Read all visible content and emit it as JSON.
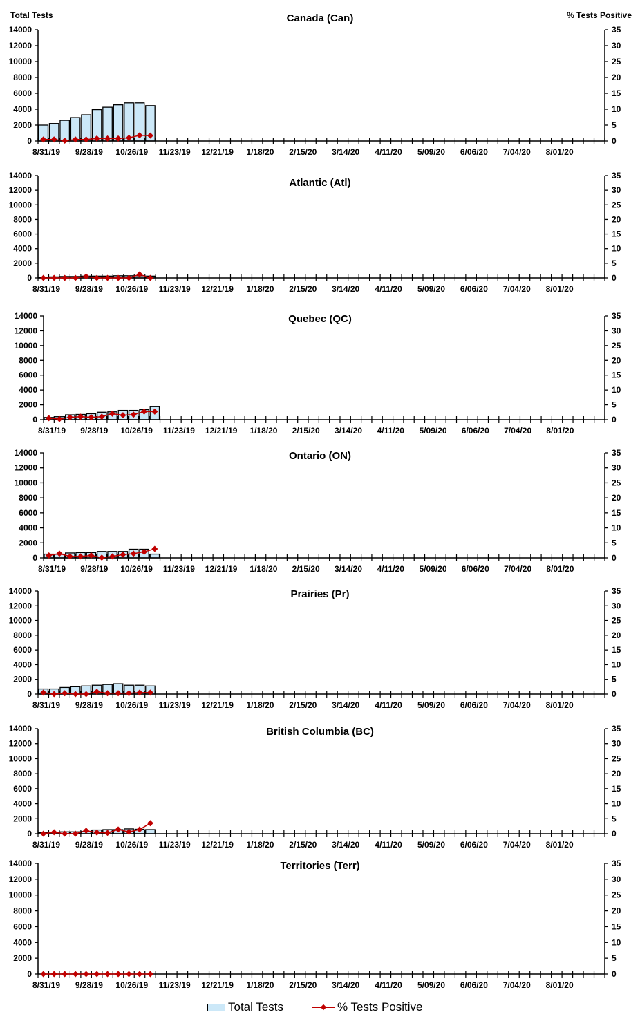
{
  "header": {
    "left_axis_title": "Total Tests",
    "right_axis_title": "% Tests Positive"
  },
  "legend": {
    "bar_label": "Total Tests",
    "line_label": "% Tests Positive"
  },
  "colors": {
    "bar_fill": "#cce8f8",
    "bar_stroke": "#000000",
    "line": "#c00000"
  },
  "chart_data": [
    {
      "type": "bar+line",
      "title": "Canada (Can)",
      "ylabel": "Total Tests",
      "y2label": "% Tests Positive",
      "ylim": [
        0,
        14000
      ],
      "y2lim": [
        0,
        35
      ],
      "yticks": [
        0,
        2000,
        4000,
        6000,
        8000,
        10000,
        12000,
        14000
      ],
      "y2ticks": [
        0,
        5,
        10,
        15,
        20,
        25,
        30,
        35
      ],
      "xtick_labels": [
        "8/31/19",
        "9/28/19",
        "10/26/19",
        "11/23/19",
        "12/21/19",
        "1/18/20",
        "2/15/20",
        "3/14/20",
        "4/11/20",
        "5/09/20",
        "6/06/20",
        "7/04/20",
        "8/01/20"
      ],
      "weeks_total": 53,
      "series": [
        {
          "name": "Total Tests",
          "type": "bar",
          "values": [
            2000,
            2200,
            2600,
            2950,
            3300,
            3950,
            4250,
            4550,
            4800,
            4800,
            4450
          ]
        },
        {
          "name": "% Tests Positive",
          "type": "line",
          "values": [
            0.5,
            0.5,
            0.1,
            0.5,
            0.5,
            0.8,
            0.8,
            0.8,
            1.0,
            1.8,
            1.7
          ]
        }
      ]
    },
    {
      "type": "bar+line",
      "title": "Atlantic (Atl)",
      "ylim": [
        0,
        14000
      ],
      "y2lim": [
        0,
        35
      ],
      "yticks": [
        0,
        2000,
        4000,
        6000,
        8000,
        10000,
        12000,
        14000
      ],
      "y2ticks": [
        0,
        5,
        10,
        15,
        20,
        25,
        30,
        35
      ],
      "xtick_labels": [
        "8/31/19",
        "9/28/19",
        "10/26/19",
        "11/23/19",
        "12/21/19",
        "1/18/20",
        "2/15/20",
        "3/14/20",
        "4/11/20",
        "5/09/20",
        "6/06/20",
        "7/04/20",
        "8/01/20"
      ],
      "weeks_total": 53,
      "series": [
        {
          "name": "Total Tests",
          "type": "bar",
          "values": [
            100,
            150,
            200,
            200,
            250,
            250,
            250,
            300,
            300,
            300,
            250
          ]
        },
        {
          "name": "% Tests Positive",
          "type": "line",
          "values": [
            0,
            0,
            0,
            0,
            0.5,
            0,
            0,
            0,
            0,
            1.2,
            0
          ]
        }
      ]
    },
    {
      "type": "bar+line",
      "title": "Quebec (QC)",
      "ylim": [
        0,
        14000
      ],
      "y2lim": [
        0,
        35
      ],
      "yticks": [
        0,
        2000,
        4000,
        6000,
        8000,
        10000,
        12000,
        14000
      ],
      "y2ticks": [
        0,
        5,
        10,
        15,
        20,
        25,
        30,
        35
      ],
      "xtick_labels": [
        "8/31/19",
        "9/28/19",
        "10/26/19",
        "11/23/19",
        "12/21/19",
        "1/18/20",
        "2/15/20",
        "3/14/20",
        "4/11/20",
        "5/09/20",
        "6/06/20",
        "7/04/20",
        "8/01/20"
      ],
      "weeks_total": 53,
      "series": [
        {
          "name": "Total Tests",
          "type": "bar",
          "values": [
            300,
            400,
            650,
            700,
            800,
            1000,
            1050,
            1250,
            1250,
            1350,
            1750
          ]
        },
        {
          "name": "% Tests Positive",
          "type": "line",
          "values": [
            0.5,
            0.2,
            0.8,
            1.0,
            0.8,
            1.0,
            2.0,
            1.5,
            1.7,
            2.7,
            2.7
          ]
        }
      ]
    },
    {
      "type": "bar+line",
      "title": "Ontario (ON)",
      "ylim": [
        0,
        14000
      ],
      "y2lim": [
        0,
        35
      ],
      "yticks": [
        0,
        2000,
        4000,
        6000,
        8000,
        10000,
        12000,
        14000
      ],
      "y2ticks": [
        0,
        5,
        10,
        15,
        20,
        25,
        30,
        35
      ],
      "xtick_labels": [
        "8/31/19",
        "9/28/19",
        "10/26/19",
        "11/23/19",
        "12/21/19",
        "1/18/20",
        "2/15/20",
        "3/14/20",
        "4/11/20",
        "5/09/20",
        "6/06/20",
        "7/04/20",
        "8/01/20"
      ],
      "weeks_total": 53,
      "series": [
        {
          "name": "Total Tests",
          "type": "bar",
          "values": [
            500,
            500,
            650,
            700,
            700,
            850,
            850,
            850,
            1150,
            1150,
            500
          ]
        },
        {
          "name": "% Tests Positive",
          "type": "line",
          "values": [
            0.8,
            1.4,
            0.5,
            0.5,
            0.8,
            0.1,
            0.5,
            1.1,
            1.4,
            2.0,
            3.0
          ]
        }
      ]
    },
    {
      "type": "bar+line",
      "title": "Prairies (Pr)",
      "ylim": [
        0,
        14000
      ],
      "y2lim": [
        0,
        35
      ],
      "yticks": [
        0,
        2000,
        4000,
        6000,
        8000,
        10000,
        12000,
        14000
      ],
      "y2ticks": [
        0,
        5,
        10,
        15,
        20,
        25,
        30,
        35
      ],
      "xtick_labels": [
        "8/31/19",
        "9/28/19",
        "10/26/19",
        "11/23/19",
        "12/21/19",
        "1/18/20",
        "2/15/20",
        "3/14/20",
        "4/11/20",
        "5/09/20",
        "6/06/20",
        "7/04/20",
        "8/01/20"
      ],
      "weeks_total": 53,
      "series": [
        {
          "name": "Total Tests",
          "type": "bar",
          "values": [
            700,
            700,
            900,
            1000,
            1100,
            1200,
            1300,
            1400,
            1200,
            1200,
            1100
          ]
        },
        {
          "name": "% Tests Positive",
          "type": "line",
          "values": [
            0.5,
            0,
            0.3,
            0,
            0,
            0.8,
            0.3,
            0.3,
            0.3,
            0.5,
            0.5
          ]
        }
      ]
    },
    {
      "type": "bar+line",
      "title": "British Columbia (BC)",
      "ylim": [
        0,
        14000
      ],
      "y2lim": [
        0,
        35
      ],
      "yticks": [
        0,
        2000,
        4000,
        6000,
        8000,
        10000,
        12000,
        14000
      ],
      "y2ticks": [
        0,
        5,
        10,
        15,
        20,
        25,
        30,
        35
      ],
      "xtick_labels": [
        "8/31/19",
        "9/28/19",
        "10/26/19",
        "11/23/19",
        "12/21/19",
        "1/18/20",
        "2/15/20",
        "3/14/20",
        "4/11/20",
        "5/09/20",
        "6/06/20",
        "7/04/20",
        "8/01/20"
      ],
      "weeks_total": 53,
      "series": [
        {
          "name": "Total Tests",
          "type": "bar",
          "values": [
            150,
            200,
            250,
            250,
            300,
            500,
            550,
            550,
            650,
            600,
            550
          ]
        },
        {
          "name": "% Tests Positive",
          "type": "line",
          "values": [
            0,
            0.5,
            0,
            0,
            1.0,
            0.4,
            0.3,
            1.4,
            0.6,
            1.4,
            3.5
          ]
        }
      ]
    },
    {
      "type": "bar+line",
      "title": "Territories (Terr)",
      "ylim": [
        0,
        14000
      ],
      "y2lim": [
        0,
        35
      ],
      "yticks": [
        0,
        2000,
        4000,
        6000,
        8000,
        10000,
        12000,
        14000
      ],
      "y2ticks": [
        0,
        5,
        10,
        15,
        20,
        25,
        30,
        35
      ],
      "xtick_labels": [
        "8/31/19",
        "9/28/19",
        "10/26/19",
        "11/23/19",
        "12/21/19",
        "1/18/20",
        "2/15/20",
        "3/14/20",
        "4/11/20",
        "5/09/20",
        "6/06/20",
        "7/04/20",
        "8/01/20"
      ],
      "weeks_total": 53,
      "series": [
        {
          "name": "Total Tests",
          "type": "bar",
          "values": [
            0,
            0,
            0,
            0,
            0,
            0,
            0,
            0,
            0,
            0,
            0
          ]
        },
        {
          "name": "% Tests Positive",
          "type": "line",
          "values": [
            0,
            0,
            0,
            0,
            0,
            0,
            0,
            0,
            0,
            0,
            0
          ]
        }
      ]
    }
  ]
}
